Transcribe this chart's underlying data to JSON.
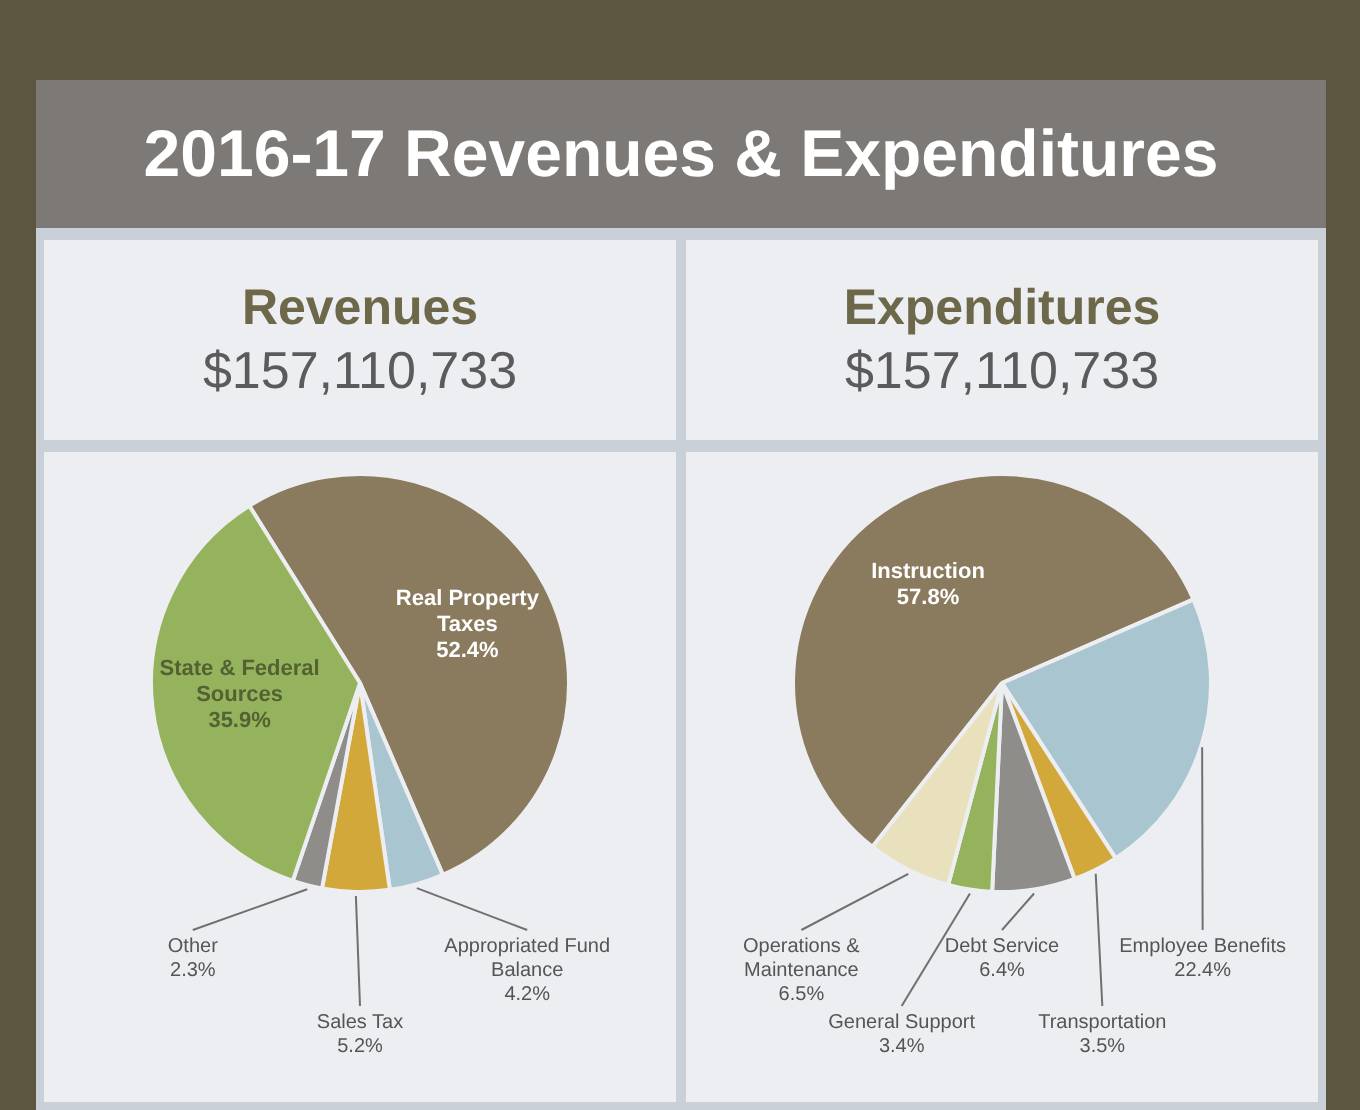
{
  "chart_data": [
    {
      "type": "pie",
      "annotations": [
        "2016-17 Revenues & Expenditures"
      ],
      "title": "Revenues",
      "subtitle": "$157,110,733",
      "categories": [
        "Real Property Taxes",
        "Appropriated Fund Balance",
        "Sales Tax",
        "Other",
        "State & Federal Sources"
      ],
      "values": [
        52.4,
        4.2,
        5.2,
        2.3,
        35.9
      ],
      "value_labels": [
        "52.4%",
        "4.2%",
        "5.2%",
        "2.3%",
        "35.9%"
      ],
      "colors": [
        "#8a7a5e",
        "#a9c6d0",
        "#d3a83a",
        "#8e8d8a",
        "#95b25c"
      ]
    },
    {
      "type": "pie",
      "title": "Expenditures",
      "subtitle": "$157,110,733",
      "categories": [
        "Instruction",
        "Employee Benefits",
        "Transportation",
        "Debt Service",
        "General Support",
        "Operations & Maintenance"
      ],
      "values": [
        57.8,
        22.4,
        3.5,
        6.4,
        3.4,
        6.5
      ],
      "value_labels": [
        "57.8%",
        "22.4%",
        "3.5%",
        "6.4%",
        "3.4%",
        "6.5%"
      ],
      "colors": [
        "#8a7a5e",
        "#a9c6d0",
        "#d3a83a",
        "#8e8d8a",
        "#95b25c",
        "#e9e0bd"
      ]
    }
  ]
}
